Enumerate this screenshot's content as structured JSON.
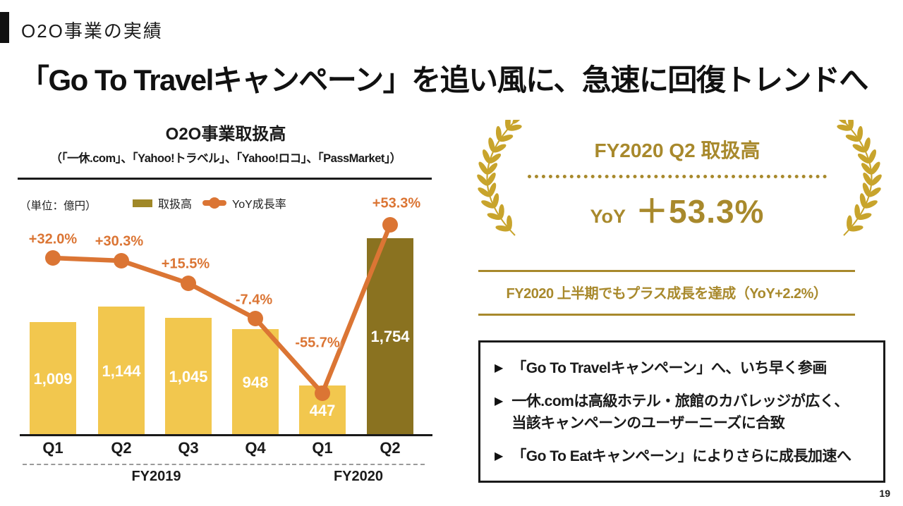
{
  "header": {
    "label": "O2O事業の実績"
  },
  "title": "「Go To Travelキャンペーン」を追い風に、急速に回復トレンドへ",
  "chart": {
    "title": "O2O事業取扱高",
    "subtitle": "（「一休.com」、「Yahoo!トラベル」、「Yahoo!ロコ」、「PassMarket」）",
    "unit_label": "（単位：億円）",
    "legend": {
      "bar_label": "取扱高",
      "line_label": "YoY成長率"
    },
    "colors": {
      "bar_yellow": "#F2C74E",
      "bar_olive": "#8A7220",
      "legend_swatch": "#A08828",
      "line_orange": "#DB7534",
      "gold": "#A8892C",
      "laurel_gold": "#C8A42C"
    }
  },
  "chart_data": {
    "type": "bar+line",
    "categories": [
      "Q1",
      "Q2",
      "Q3",
      "Q4",
      "Q1",
      "Q2"
    ],
    "groups": [
      {
        "label": "FY2019",
        "span": [
          0,
          3
        ]
      },
      {
        "label": "FY2020",
        "span": [
          4,
          5
        ]
      }
    ],
    "series": [
      {
        "name": "取扱高",
        "type": "bar",
        "values": [
          1009,
          1144,
          1045,
          948,
          447,
          1754
        ],
        "value_labels": [
          "1,009",
          "1,144",
          "1,045",
          "948",
          "447",
          "1,754"
        ],
        "highlight_index": 5
      },
      {
        "name": "YoY成長率",
        "type": "line",
        "values": [
          32.0,
          30.3,
          15.5,
          -7.4,
          -55.7,
          53.3
        ],
        "value_labels": [
          "+32.0%",
          "+30.3%",
          "+15.5%",
          "-7.4%",
          "-55.7%",
          "+53.3%"
        ]
      }
    ],
    "bar_ylim": [
      0,
      1900
    ],
    "line_ylim_pct": [
      -80,
      70
    ],
    "legend_position": "top",
    "grid": false
  },
  "badge": {
    "title": "FY2020 Q2 取扱高",
    "yoy_label": "YoY",
    "yoy_value": "＋53.3%"
  },
  "achievement": {
    "text": "FY2020 上半期でもプラス成長を達成（YoY+2.2%）"
  },
  "highlights": {
    "items": [
      "「Go To Travelキャンペーン」へ、いち早く参画",
      "一休.comは高級ホテル・旅館のカバレッジが広く、\n当該キャンペーンのユーザーニーズに合致",
      "「Go To Eatキャンペーン」によりさらに成長加速へ"
    ]
  },
  "page": {
    "number": "19"
  }
}
